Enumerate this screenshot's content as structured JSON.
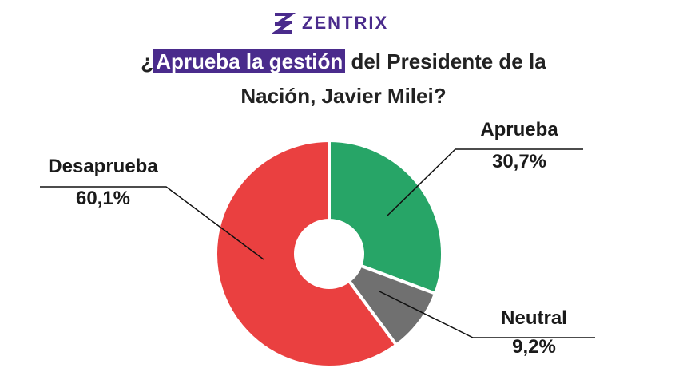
{
  "brand": "ZENTRIX",
  "chart_data": {
    "type": "donut",
    "title": [
      "¿",
      "Aprueba la gestión",
      "del Presidente de la Nación, Javier Milei?"
    ],
    "title_highlight_color": "#4a2b8c",
    "categories": [
      "Aprueba",
      "Neutral",
      "Desaprueba"
    ],
    "values": [
      30.7,
      9.2,
      60.1
    ],
    "value_labels": [
      "30,7%",
      "9,2%",
      "60,1%"
    ],
    "colors": [
      "#27a567",
      "#707070",
      "#ea4040"
    ]
  }
}
